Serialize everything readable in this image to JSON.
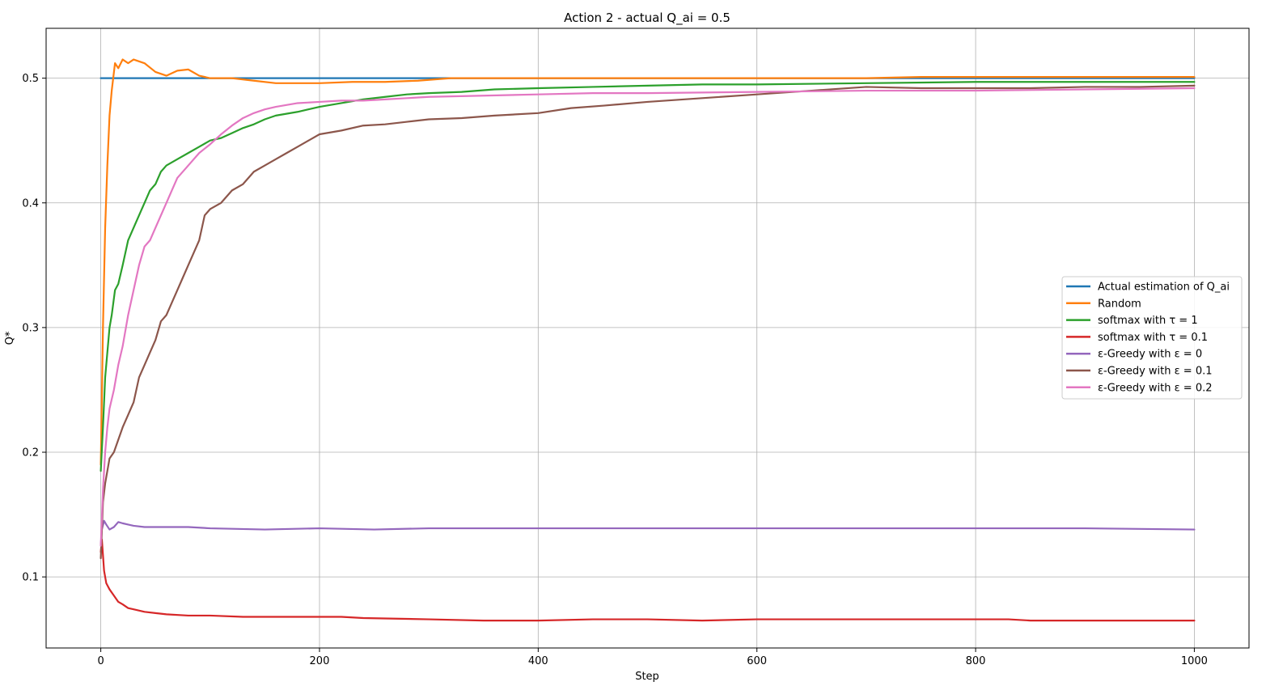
{
  "chart_data": {
    "type": "line",
    "title": "Action 2 - actual Q_ai = 0.5",
    "xlabel": "Step",
    "ylabel": "Q*",
    "xlim": [
      -50,
      1050
    ],
    "ylim": [
      0.043,
      0.54
    ],
    "xticks": [
      0,
      200,
      400,
      600,
      800,
      1000
    ],
    "yticks": [
      0.1,
      0.2,
      0.3,
      0.4,
      0.5
    ],
    "xtick_labels": [
      "0",
      "200",
      "400",
      "600",
      "800",
      "1000"
    ],
    "ytick_labels": [
      "0.1",
      "0.2",
      "0.3",
      "0.4",
      "0.5"
    ],
    "grid": true,
    "legend_position": "center-right",
    "series": [
      {
        "name": "Actual estimation of Q_ai",
        "color": "#1f77b4",
        "points": [
          [
            0,
            0.5
          ],
          [
            1000,
            0.5
          ]
        ]
      },
      {
        "name": "Random",
        "color": "#ff7f0e",
        "points": [
          [
            0,
            0.19
          ],
          [
            2,
            0.3
          ],
          [
            4,
            0.38
          ],
          [
            6,
            0.43
          ],
          [
            8,
            0.47
          ],
          [
            10,
            0.49
          ],
          [
            13,
            0.512
          ],
          [
            16,
            0.508
          ],
          [
            20,
            0.515
          ],
          [
            25,
            0.512
          ],
          [
            30,
            0.515
          ],
          [
            40,
            0.512
          ],
          [
            50,
            0.505
          ],
          [
            60,
            0.502
          ],
          [
            70,
            0.506
          ],
          [
            80,
            0.507
          ],
          [
            90,
            0.502
          ],
          [
            100,
            0.5
          ],
          [
            120,
            0.5
          ],
          [
            140,
            0.498
          ],
          [
            160,
            0.496
          ],
          [
            180,
            0.496
          ],
          [
            200,
            0.496
          ],
          [
            230,
            0.497
          ],
          [
            260,
            0.497
          ],
          [
            290,
            0.498
          ],
          [
            320,
            0.5
          ],
          [
            360,
            0.5
          ],
          [
            400,
            0.5
          ],
          [
            450,
            0.5
          ],
          [
            500,
            0.5
          ],
          [
            550,
            0.5
          ],
          [
            600,
            0.5
          ],
          [
            650,
            0.5
          ],
          [
            700,
            0.5
          ],
          [
            750,
            0.501
          ],
          [
            800,
            0.501
          ],
          [
            850,
            0.501
          ],
          [
            900,
            0.501
          ],
          [
            950,
            0.501
          ],
          [
            1000,
            0.501
          ]
        ]
      },
      {
        "name": "softmax with τ = 1",
        "color": "#2ca02c",
        "points": [
          [
            0,
            0.185
          ],
          [
            2,
            0.22
          ],
          [
            4,
            0.26
          ],
          [
            6,
            0.28
          ],
          [
            8,
            0.3
          ],
          [
            10,
            0.31
          ],
          [
            13,
            0.33
          ],
          [
            16,
            0.335
          ],
          [
            20,
            0.35
          ],
          [
            25,
            0.37
          ],
          [
            30,
            0.38
          ],
          [
            35,
            0.39
          ],
          [
            40,
            0.4
          ],
          [
            45,
            0.41
          ],
          [
            50,
            0.415
          ],
          [
            55,
            0.425
          ],
          [
            60,
            0.43
          ],
          [
            70,
            0.435
          ],
          [
            80,
            0.44
          ],
          [
            90,
            0.445
          ],
          [
            100,
            0.45
          ],
          [
            110,
            0.452
          ],
          [
            120,
            0.456
          ],
          [
            130,
            0.46
          ],
          [
            140,
            0.463
          ],
          [
            150,
            0.467
          ],
          [
            160,
            0.47
          ],
          [
            180,
            0.473
          ],
          [
            200,
            0.477
          ],
          [
            220,
            0.48
          ],
          [
            240,
            0.483
          ],
          [
            260,
            0.485
          ],
          [
            280,
            0.487
          ],
          [
            300,
            0.488
          ],
          [
            330,
            0.489
          ],
          [
            360,
            0.491
          ],
          [
            400,
            0.492
          ],
          [
            450,
            0.493
          ],
          [
            500,
            0.494
          ],
          [
            550,
            0.495
          ],
          [
            600,
            0.495
          ],
          [
            700,
            0.496
          ],
          [
            800,
            0.497
          ],
          [
            900,
            0.497
          ],
          [
            1000,
            0.497
          ]
        ]
      },
      {
        "name": "softmax with τ = 0.1",
        "color": "#d62728",
        "points": [
          [
            0,
            0.12
          ],
          [
            1,
            0.13
          ],
          [
            3,
            0.105
          ],
          [
            5,
            0.095
          ],
          [
            8,
            0.09
          ],
          [
            12,
            0.085
          ],
          [
            16,
            0.08
          ],
          [
            20,
            0.078
          ],
          [
            25,
            0.075
          ],
          [
            30,
            0.074
          ],
          [
            40,
            0.072
          ],
          [
            50,
            0.071
          ],
          [
            60,
            0.07
          ],
          [
            80,
            0.069
          ],
          [
            100,
            0.069
          ],
          [
            130,
            0.068
          ],
          [
            160,
            0.068
          ],
          [
            200,
            0.068
          ],
          [
            220,
            0.068
          ],
          [
            240,
            0.067
          ],
          [
            300,
            0.066
          ],
          [
            350,
            0.065
          ],
          [
            400,
            0.065
          ],
          [
            450,
            0.066
          ],
          [
            500,
            0.066
          ],
          [
            550,
            0.065
          ],
          [
            600,
            0.066
          ],
          [
            700,
            0.066
          ],
          [
            800,
            0.066
          ],
          [
            830,
            0.066
          ],
          [
            850,
            0.065
          ],
          [
            900,
            0.065
          ],
          [
            950,
            0.065
          ],
          [
            1000,
            0.065
          ]
        ]
      },
      {
        "name": "ε-Greedy with ε = 0",
        "color": "#9467bd",
        "points": [
          [
            0,
            0.125
          ],
          [
            1,
            0.138
          ],
          [
            3,
            0.145
          ],
          [
            5,
            0.142
          ],
          [
            8,
            0.138
          ],
          [
            12,
            0.14
          ],
          [
            16,
            0.144
          ],
          [
            20,
            0.143
          ],
          [
            25,
            0.142
          ],
          [
            30,
            0.141
          ],
          [
            40,
            0.14
          ],
          [
            60,
            0.14
          ],
          [
            80,
            0.14
          ],
          [
            100,
            0.139
          ],
          [
            150,
            0.138
          ],
          [
            200,
            0.139
          ],
          [
            250,
            0.138
          ],
          [
            300,
            0.139
          ],
          [
            350,
            0.139
          ],
          [
            400,
            0.139
          ],
          [
            500,
            0.139
          ],
          [
            600,
            0.139
          ],
          [
            700,
            0.139
          ],
          [
            800,
            0.139
          ],
          [
            900,
            0.139
          ],
          [
            1000,
            0.138
          ]
        ]
      },
      {
        "name": "ε-Greedy with ε = 0.1",
        "color": "#8c564b",
        "points": [
          [
            0,
            0.115
          ],
          [
            2,
            0.16
          ],
          [
            4,
            0.175
          ],
          [
            6,
            0.185
          ],
          [
            8,
            0.195
          ],
          [
            12,
            0.2
          ],
          [
            16,
            0.21
          ],
          [
            20,
            0.22
          ],
          [
            25,
            0.23
          ],
          [
            30,
            0.24
          ],
          [
            35,
            0.26
          ],
          [
            40,
            0.27
          ],
          [
            45,
            0.28
          ],
          [
            50,
            0.29
          ],
          [
            55,
            0.305
          ],
          [
            60,
            0.31
          ],
          [
            65,
            0.32
          ],
          [
            70,
            0.33
          ],
          [
            75,
            0.34
          ],
          [
            80,
            0.35
          ],
          [
            85,
            0.36
          ],
          [
            90,
            0.37
          ],
          [
            95,
            0.39
          ],
          [
            100,
            0.395
          ],
          [
            110,
            0.4
          ],
          [
            120,
            0.41
          ],
          [
            130,
            0.415
          ],
          [
            140,
            0.425
          ],
          [
            150,
            0.43
          ],
          [
            160,
            0.435
          ],
          [
            170,
            0.44
          ],
          [
            180,
            0.445
          ],
          [
            190,
            0.45
          ],
          [
            200,
            0.455
          ],
          [
            220,
            0.458
          ],
          [
            240,
            0.462
          ],
          [
            260,
            0.463
          ],
          [
            280,
            0.465
          ],
          [
            300,
            0.467
          ],
          [
            330,
            0.468
          ],
          [
            360,
            0.47
          ],
          [
            400,
            0.472
          ],
          [
            430,
            0.476
          ],
          [
            460,
            0.478
          ],
          [
            500,
            0.481
          ],
          [
            550,
            0.484
          ],
          [
            600,
            0.487
          ],
          [
            650,
            0.49
          ],
          [
            700,
            0.493
          ],
          [
            750,
            0.492
          ],
          [
            800,
            0.492
          ],
          [
            850,
            0.492
          ],
          [
            900,
            0.493
          ],
          [
            950,
            0.493
          ],
          [
            1000,
            0.494
          ]
        ]
      },
      {
        "name": "ε-Greedy with ε = 0.2",
        "color": "#e377c2",
        "points": [
          [
            0,
            0.125
          ],
          [
            2,
            0.17
          ],
          [
            4,
            0.2
          ],
          [
            6,
            0.22
          ],
          [
            8,
            0.235
          ],
          [
            12,
            0.25
          ],
          [
            16,
            0.27
          ],
          [
            20,
            0.285
          ],
          [
            25,
            0.31
          ],
          [
            30,
            0.33
          ],
          [
            35,
            0.35
          ],
          [
            40,
            0.365
          ],
          [
            45,
            0.37
          ],
          [
            50,
            0.38
          ],
          [
            55,
            0.39
          ],
          [
            60,
            0.4
          ],
          [
            65,
            0.41
          ],
          [
            70,
            0.42
          ],
          [
            80,
            0.43
          ],
          [
            90,
            0.44
          ],
          [
            100,
            0.447
          ],
          [
            110,
            0.455
          ],
          [
            120,
            0.462
          ],
          [
            130,
            0.468
          ],
          [
            140,
            0.472
          ],
          [
            150,
            0.475
          ],
          [
            160,
            0.477
          ],
          [
            180,
            0.48
          ],
          [
            200,
            0.481
          ],
          [
            220,
            0.482
          ],
          [
            240,
            0.482
          ],
          [
            260,
            0.483
          ],
          [
            280,
            0.484
          ],
          [
            300,
            0.485
          ],
          [
            350,
            0.486
          ],
          [
            400,
            0.487
          ],
          [
            450,
            0.488
          ],
          [
            500,
            0.488
          ],
          [
            600,
            0.489
          ],
          [
            700,
            0.49
          ],
          [
            800,
            0.49
          ],
          [
            900,
            0.491
          ],
          [
            1000,
            0.492
          ]
        ]
      }
    ]
  }
}
